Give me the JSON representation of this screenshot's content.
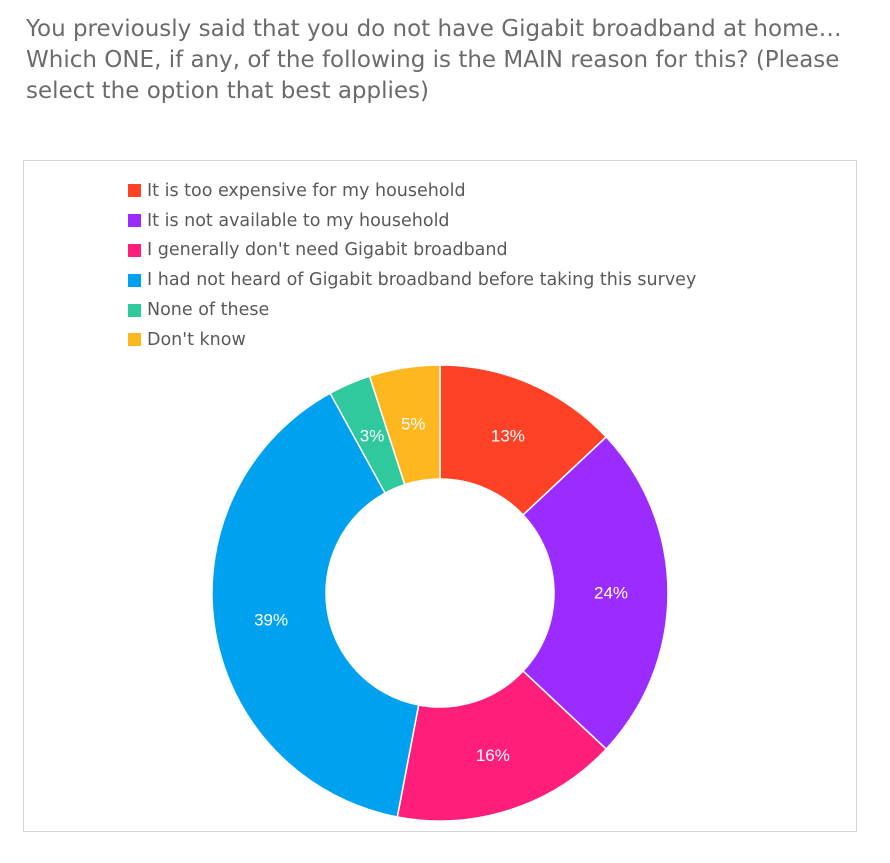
{
  "question": "You previously said that you do not have Gigabit broadband at home… Which ONE, if any, of the following is the MAIN reason for this? (Please select the option that best applies)",
  "chart_data": {
    "type": "donut",
    "title": "",
    "legend_position": "top-left",
    "categories": [
      "It is too expensive for my household",
      "It is not available to my household",
      "I generally don't need Gigabit broadband",
      "I had not heard of Gigabit broadband before taking this survey",
      "None of these",
      "Don't know"
    ],
    "values": [
      13,
      24,
      16,
      39,
      3,
      5
    ],
    "unit": "%",
    "data_labels": [
      "13%",
      "24%",
      "16%",
      "39%",
      "3%",
      "5%"
    ],
    "colors": [
      "#ff4126",
      "#9b2cff",
      "#ff1f7a",
      "#00a2ef",
      "#30c99e",
      "#ffb720"
    ]
  }
}
